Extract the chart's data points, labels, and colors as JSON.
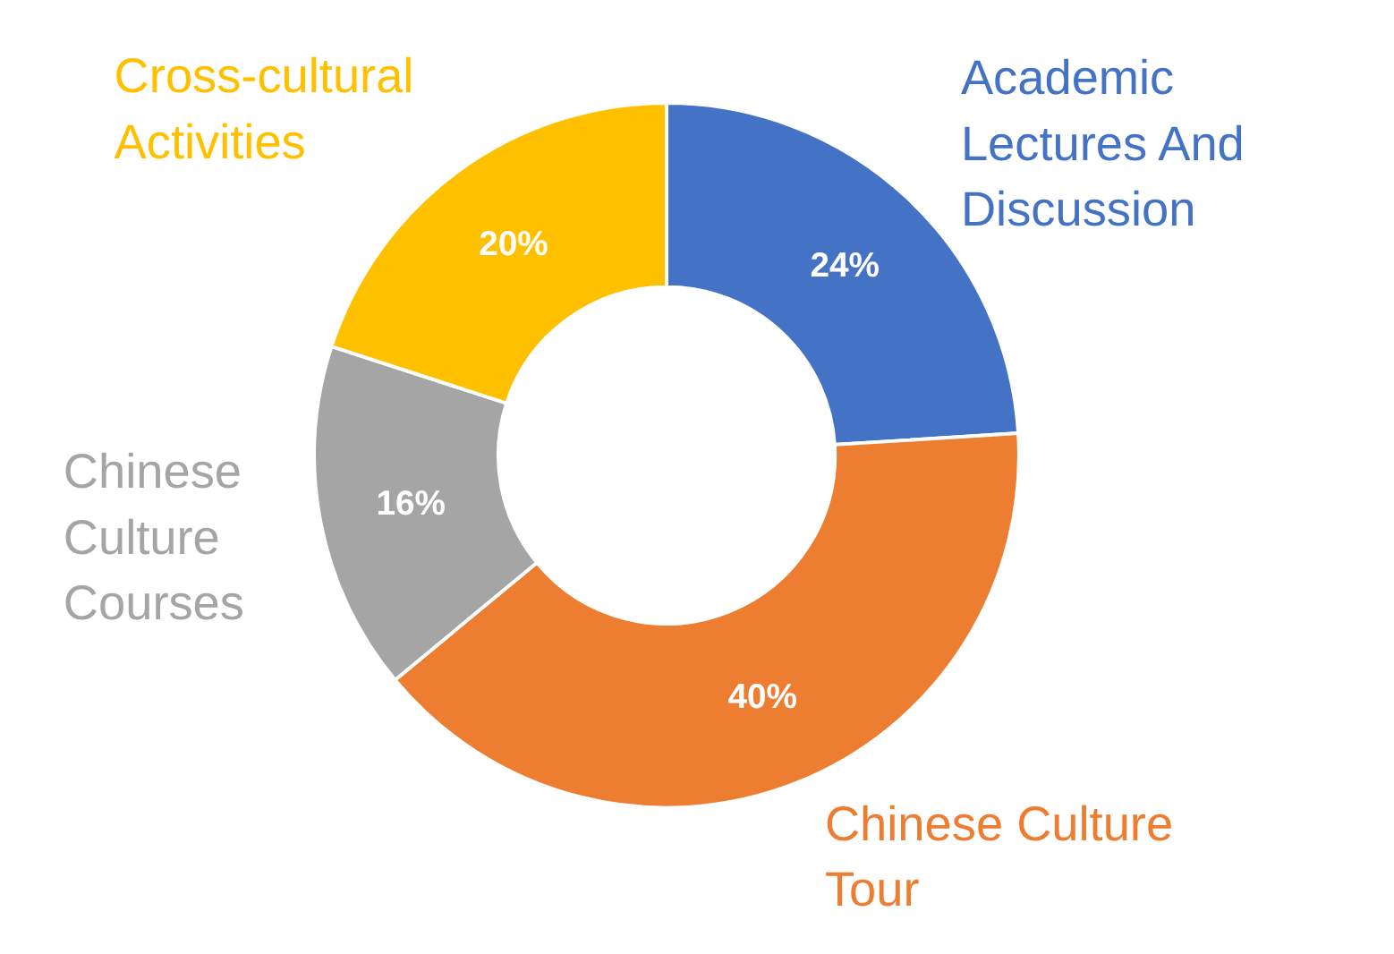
{
  "chart_data": {
    "type": "donut",
    "categories": [
      "Academic Lectures And Discussion",
      "Chinese Culture Tour",
      "Chinese Culture Courses",
      "Cross-cultural Activities"
    ],
    "values": [
      24,
      40,
      16,
      20
    ],
    "colors": [
      "#4472c4",
      "#ed7d31",
      "#a5a5a5",
      "#ffc000"
    ],
    "value_labels": [
      "24%",
      "40%",
      "16%",
      "20%"
    ]
  }
}
